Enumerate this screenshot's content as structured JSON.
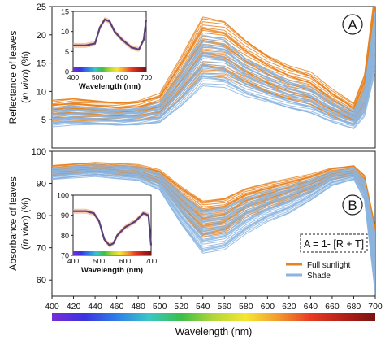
{
  "chart_data": [
    {
      "id": "A",
      "type": "line",
      "panel_label": "A",
      "ylabel_line1": "Reflectance of leaves",
      "ylabel_italic": "in vivo",
      "ylabel_suffix": "(%)",
      "ylim": [
        0,
        25
      ],
      "yticks": [
        5,
        10,
        15,
        20,
        25
      ],
      "xlim": [
        400,
        700
      ],
      "grid": false,
      "x": [
        400,
        420,
        440,
        460,
        480,
        500,
        520,
        540,
        560,
        580,
        600,
        620,
        640,
        660,
        680,
        690,
        700
      ],
      "series": [
        {
          "name": "Full sunlight",
          "color": "#e8821e",
          "values": [
            6.5,
            6.8,
            6.6,
            6.4,
            6.6,
            7.5,
            12.5,
            18,
            17.5,
            15,
            13,
            11.5,
            10.5,
            8,
            6,
            10,
            22
          ]
        },
        {
          "name": "Shade",
          "color": "#8bb5e0",
          "values": [
            5.5,
            5.8,
            5.6,
            5.4,
            5.6,
            6.3,
            10.5,
            15.5,
            15,
            12.5,
            11,
            9.5,
            8.5,
            6.5,
            5,
            8,
            19
          ]
        }
      ],
      "inset": {
        "ylim": [
          0,
          15
        ],
        "yticks": [
          0,
          5,
          10,
          15
        ],
        "xlim": [
          400,
          700
        ],
        "xticks": [
          400,
          500,
          600,
          700
        ],
        "xlabel": "Wavelength (nm)",
        "x": [
          400,
          450,
          490,
          510,
          530,
          550,
          570,
          600,
          640,
          670,
          690,
          700
        ],
        "values": [
          6.5,
          6.5,
          7,
          11,
          13,
          12.5,
          10,
          8,
          6,
          5.5,
          8,
          13
        ]
      }
    },
    {
      "id": "B",
      "type": "line",
      "panel_label": "B",
      "ylabel_line1": "Absorbance of leaves",
      "ylabel_italic": "in vivo",
      "ylabel_suffix": "(%)",
      "ylim": [
        55,
        100
      ],
      "yticks": [
        60,
        70,
        80,
        90,
        100
      ],
      "xlim": [
        400,
        700
      ],
      "xticks": [
        400,
        420,
        440,
        460,
        480,
        500,
        520,
        540,
        560,
        580,
        600,
        620,
        640,
        660,
        680,
        700
      ],
      "xlabel": "Wavelength (nm)",
      "grid": false,
      "annotation": "A = 1- [R + T]",
      "legend_position": "bottom-right",
      "x": [
        400,
        420,
        440,
        460,
        480,
        500,
        520,
        540,
        560,
        580,
        600,
        620,
        640,
        660,
        680,
        690,
        700
      ],
      "series": [
        {
          "name": "Full sunlight",
          "color": "#e8821e",
          "values": [
            94,
            94.5,
            95,
            94.5,
            94,
            92,
            85,
            79,
            80,
            84,
            86,
            88,
            90,
            93,
            94,
            90,
            68
          ]
        },
        {
          "name": "Shade",
          "color": "#8bb5e0",
          "values": [
            93,
            93.5,
            94,
            93.5,
            93,
            90.5,
            82,
            75,
            76,
            80,
            83,
            85,
            88,
            91.5,
            93,
            88,
            65
          ]
        }
      ],
      "inset": {
        "ylim": [
          70,
          100
        ],
        "yticks": [
          70,
          80,
          90,
          100
        ],
        "xlim": [
          400,
          700
        ],
        "xticks": [
          400,
          500,
          600,
          700
        ],
        "xlabel": "Wavelength (nm)",
        "x": [
          400,
          450,
          480,
          500,
          520,
          540,
          555,
          570,
          600,
          640,
          670,
          690,
          700
        ],
        "values": [
          92,
          92,
          91,
          87,
          78,
          75,
          76,
          80,
          84,
          87,
          91,
          90,
          75
        ]
      }
    }
  ],
  "colorbar": {
    "xlabel": "Wavelength (nm)",
    "stops": [
      "#7a2bd6",
      "#3a33e0",
      "#2f7ee8",
      "#39c7c7",
      "#3bbf47",
      "#b4d637",
      "#f5e633",
      "#f29a2e",
      "#e83a22",
      "#b3201a",
      "#7a1212"
    ]
  },
  "legend": {
    "items": [
      {
        "label": "Full sunlight",
        "color": "#e8821e"
      },
      {
        "label": "Shade",
        "color": "#8bb5e0"
      }
    ]
  }
}
